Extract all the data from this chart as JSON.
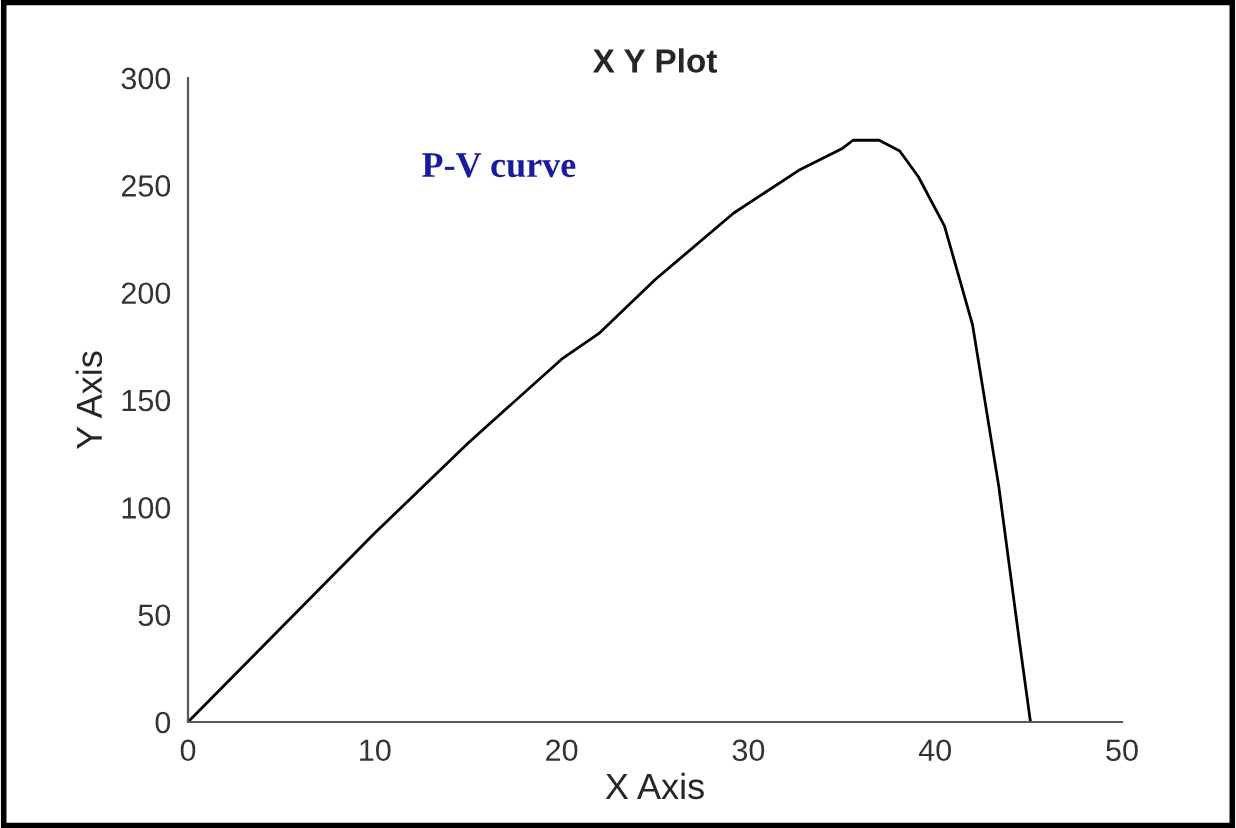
{
  "chart_data": {
    "type": "line",
    "title": "X Y Plot",
    "xlabel": "X Axis",
    "ylabel": "Y Axis",
    "annotations": [
      "P-V curve"
    ],
    "series": [
      {
        "color": "#000000",
        "x": [
          0,
          5,
          10,
          15,
          20,
          22,
          25,
          29.2,
          32.7,
          35,
          35.6,
          37,
          38.1,
          39.1,
          40.5,
          42,
          43.4,
          44.5,
          45.1
        ],
        "values": [
          0,
          44,
          88,
          130,
          169,
          181,
          206,
          237,
          257,
          267,
          271,
          271,
          266,
          254,
          231,
          185,
          110,
          38,
          0
        ]
      }
    ],
    "xlim": [
      0,
      50
    ],
    "ylim": [
      0,
      300
    ],
    "xticks": [
      0,
      10,
      20,
      30,
      40,
      50
    ],
    "yticks": [
      0,
      50,
      100,
      150,
      200,
      250,
      300
    ],
    "grid": false,
    "legend": false
  }
}
